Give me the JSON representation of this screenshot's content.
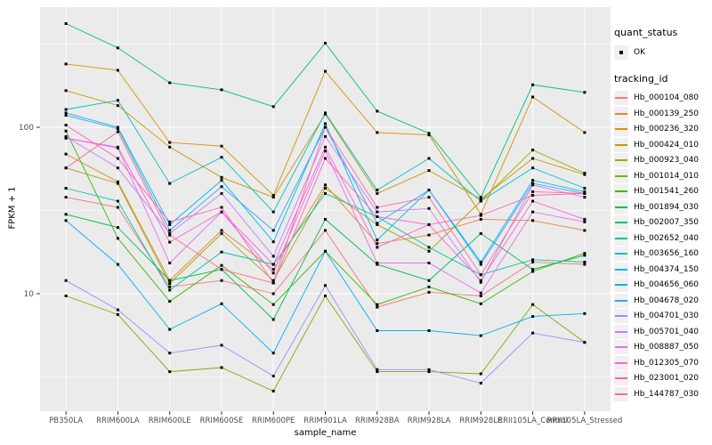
{
  "legend": {
    "quant_status_title": "quant_status",
    "quant_status_items": [
      {
        "label": "OK",
        "marker": "black-point"
      }
    ],
    "tracking_id_title": "tracking_id"
  },
  "axes": {
    "x_title": "sample_name",
    "y_title": "FPKM + 1",
    "y_tick_labels": [
      "100",
      "10"
    ]
  },
  "colors": {
    "panel_bg": "#EBEBEB",
    "grid": "#FFFFFF",
    "tick_label": "#4D4D4D",
    "marker": "#000000"
  },
  "chart_data": {
    "type": "line",
    "yscale": "log10",
    "xlabel": "sample_name",
    "ylabel": "FPKM + 1",
    "grid": true,
    "legend_position": "right",
    "ylim": [
      2,
      515
    ],
    "y_major_ticks": [
      10,
      100
    ],
    "y_minor_ticks": [
      3.162,
      31.62,
      316.2
    ],
    "marker": "point",
    "quant_status_value": "OK",
    "x": [
      "PB350LA",
      "RRIM600LA",
      "RRIM600LE",
      "RRIM600SE",
      "RRIM600PE",
      "RRIM901LA",
      "RRIM928BA",
      "RRIM928LA",
      "RRIM928LE",
      "RRII105LA_Control",
      "RRII105LA_Stressed"
    ],
    "series": [
      {
        "name": "Hb_000104_080",
        "color": "#F8766D",
        "values": [
          38,
          33,
          11,
          12,
          10,
          24,
          8.3,
          10.2,
          9.7,
          15.5,
          15
        ]
      },
      {
        "name": "Hb_000139_250",
        "color": "#EA8331",
        "values": [
          69,
          47,
          12,
          24,
          14,
          45,
          20,
          22.5,
          28,
          27.5,
          24
        ]
      },
      {
        "name": "Hb_000236_320",
        "color": "#D89000",
        "values": [
          240,
          220,
          81,
          77,
          39,
          217,
          93,
          90,
          30,
          152,
          93
        ]
      },
      {
        "name": "Hb_000424_010",
        "color": "#C09B00",
        "values": [
          166,
          135,
          76,
          50,
          38,
          120,
          40,
          55,
          37,
          65,
          52
        ]
      },
      {
        "name": "Hb_000923_040",
        "color": "#A3A500",
        "values": [
          57,
          46,
          11.5,
          23,
          12,
          43,
          26,
          18,
          36,
          73,
          53
        ]
      },
      {
        "name": "Hb_001014_010",
        "color": "#7CAE00",
        "values": [
          9.7,
          7.5,
          3.4,
          3.6,
          2.6,
          9.7,
          3.4,
          3.4,
          3.3,
          8.6,
          5.1
        ]
      },
      {
        "name": "Hb_001541_260",
        "color": "#39B600",
        "values": [
          95,
          21.5,
          9,
          14.8,
          8.6,
          18,
          8.6,
          11,
          8.7,
          13.6,
          17.5
        ]
      },
      {
        "name": "Hb_001894_030",
        "color": "#00BB4E",
        "values": [
          30,
          25,
          12,
          14,
          7,
          28,
          15,
          12,
          23,
          14,
          17
        ]
      },
      {
        "name": "Hb_002007_350",
        "color": "#00BF7D",
        "values": [
          420,
          300,
          185,
          168,
          133,
          320,
          125,
          92,
          38,
          180,
          162
        ]
      },
      {
        "name": "Hb_002652_040",
        "color": "#00C1A3",
        "values": [
          43,
          36,
          10.5,
          17.8,
          15,
          40,
          29,
          19,
          13,
          16,
          15.5
        ]
      },
      {
        "name": "Hb_003656_160",
        "color": "#00BFC4",
        "values": [
          128,
          145,
          46,
          66,
          31,
          122,
          42,
          65,
          36,
          57,
          43
        ]
      },
      {
        "name": "Hb_004374_150",
        "color": "#00BAE0",
        "values": [
          122,
          100,
          26,
          48,
          20.5,
          105,
          21,
          42,
          15.5,
          48,
          41
        ]
      },
      {
        "name": "Hb_004656_060",
        "color": "#00B0F6",
        "values": [
          27.5,
          15,
          6.1,
          8.7,
          4.4,
          18,
          6,
          6,
          5.6,
          7.3,
          7.6
        ]
      },
      {
        "name": "Hb_004678_020",
        "color": "#35A2FF",
        "values": [
          118,
          98,
          24,
          44,
          24,
          100,
          26.5,
          42,
          15,
          46,
          40
        ]
      },
      {
        "name": "Hb_004701_030",
        "color": "#9590FF",
        "values": [
          12,
          8,
          4.4,
          4.9,
          3.2,
          11.2,
          3.5,
          3.5,
          2.9,
          5.8,
          5.1
        ]
      },
      {
        "name": "Hb_005701_040",
        "color": "#C77CFF",
        "values": [
          88,
          57,
          23,
          40,
          16.8,
          88,
          31,
          32.5,
          11.7,
          45,
          38
        ]
      },
      {
        "name": "Hb_008887_050",
        "color": "#E76BF3",
        "values": [
          86,
          75,
          15.3,
          31,
          13.3,
          72,
          15.3,
          15.3,
          10.1,
          31,
          27
        ]
      },
      {
        "name": "Hb_012305_070",
        "color": "#FA62DB",
        "values": [
          86,
          76,
          20.4,
          31,
          15,
          76,
          19,
          26,
          12,
          36,
          28
        ]
      },
      {
        "name": "Hb_023001_020",
        "color": "#FF62BC",
        "values": [
          103,
          65,
          27,
          33,
          11.6,
          65,
          29,
          26,
          29.5,
          39,
          40
        ]
      },
      {
        "name": "Hb_144787_030",
        "color": "#FF6A98",
        "values": [
          57,
          94,
          22.5,
          14,
          11.6,
          100,
          33,
          38,
          13,
          41,
          40
        ]
      }
    ]
  }
}
